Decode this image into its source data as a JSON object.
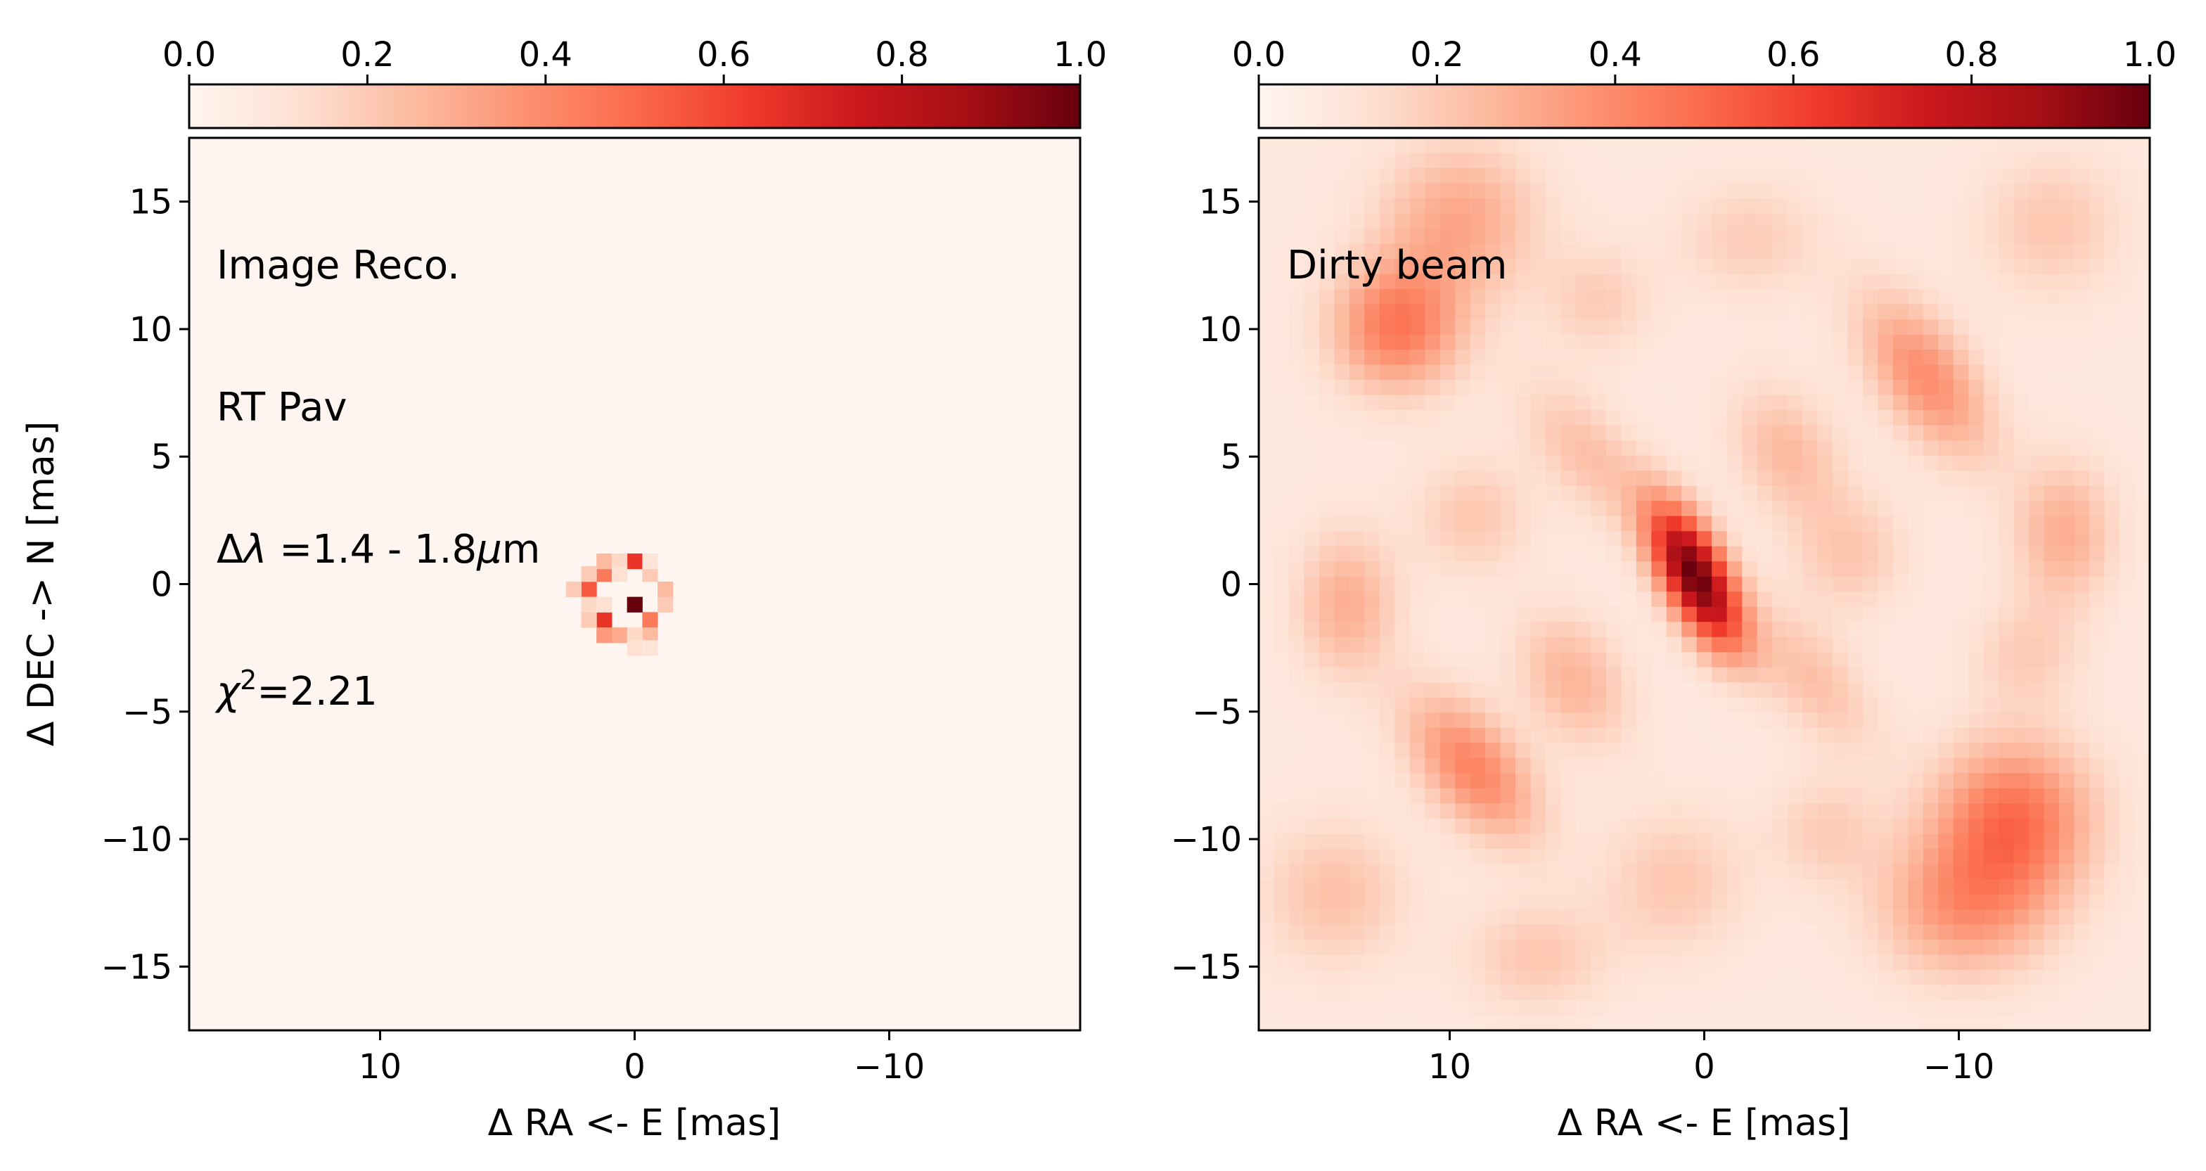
{
  "colormap": {
    "name": "Reds",
    "stops": [
      "#fff5f0",
      "#fee0d2",
      "#fcbba1",
      "#fc9272",
      "#fb6a4a",
      "#ef3b2c",
      "#cb181d",
      "#a50f15",
      "#67000d"
    ]
  },
  "colorbar": {
    "range": [
      0.0,
      1.0
    ],
    "ticks": [
      "0.0",
      "0.2",
      "0.4",
      "0.6",
      "0.8",
      "1.0"
    ]
  },
  "axes": {
    "xlabel": "Δ RA <- E [mas]",
    "ylabel": "Δ DEC -> N [mas]",
    "xlim": [
      17.5,
      -17.5
    ],
    "ylim": [
      -17.5,
      17.5
    ],
    "xticks": [
      {
        "v": 10,
        "t": "10"
      },
      {
        "v": 0,
        "t": "0"
      },
      {
        "v": -10,
        "t": "−10"
      }
    ],
    "yticks": [
      {
        "v": 15,
        "t": "15"
      },
      {
        "v": 10,
        "t": "10"
      },
      {
        "v": 5,
        "t": "5"
      },
      {
        "v": 0,
        "t": "0"
      },
      {
        "v": -5,
        "t": "−5"
      },
      {
        "v": -10,
        "t": "−10"
      },
      {
        "v": -15,
        "t": "−15"
      }
    ]
  },
  "left_panel": {
    "annotations": {
      "line1": "Image Reco.",
      "line2": "RT Pav",
      "line3_prefix": "Δ",
      "line3_symbol": "λ",
      "line3_rest": " =1.4 - 1.8",
      "line3_unit_mu": "μ",
      "line3_unit_m": "m",
      "line4_symbol": "χ",
      "line4_sup": "2",
      "line4_rest": "=2.21"
    }
  },
  "right_panel": {
    "annotations": {
      "line1": "Dirty beam"
    }
  },
  "chart_data": [
    {
      "type": "heatmap",
      "title": "",
      "label": "Image Reco.",
      "xlabel": "Δ RA <- E [mas]",
      "ylabel": "Δ DEC -> N [mas]",
      "xlim": [
        17.5,
        -17.5
      ],
      "ylim": [
        -17.5,
        17.5
      ],
      "clim": [
        0.0,
        1.0
      ],
      "colormap": "Reds",
      "background_value": 0.03,
      "pixel_size_mas": 0.6,
      "pixels": [
        {
          "x": 0.0,
          "y": -0.8,
          "v": 1.0
        },
        {
          "x": 1.2,
          "y": -1.4,
          "v": 0.65
        },
        {
          "x": 1.8,
          "y": -0.2,
          "v": 0.55
        },
        {
          "x": 0.0,
          "y": 0.9,
          "v": 0.65
        },
        {
          "x": 1.2,
          "y": 0.4,
          "v": 0.45
        },
        {
          "x": -0.6,
          "y": -1.4,
          "v": 0.45
        },
        {
          "x": 1.2,
          "y": 0.9,
          "v": 0.25
        },
        {
          "x": 1.8,
          "y": 0.4,
          "v": 0.2
        },
        {
          "x": 0.6,
          "y": 0.9,
          "v": 0.15
        },
        {
          "x": -0.6,
          "y": 0.4,
          "v": 0.2
        },
        {
          "x": -1.2,
          "y": -0.2,
          "v": 0.25
        },
        {
          "x": -1.2,
          "y": -0.8,
          "v": 0.2
        },
        {
          "x": 2.4,
          "y": -0.2,
          "v": 0.2
        },
        {
          "x": 1.8,
          "y": -1.4,
          "v": 0.2
        },
        {
          "x": 0.6,
          "y": -2.0,
          "v": 0.3
        },
        {
          "x": 1.2,
          "y": -2.0,
          "v": 0.35
        },
        {
          "x": -0.6,
          "y": -2.0,
          "v": 0.25
        },
        {
          "x": 0.0,
          "y": -2.0,
          "v": 0.15
        },
        {
          "x": 0.0,
          "y": -2.5,
          "v": 0.12
        },
        {
          "x": -0.6,
          "y": -2.5,
          "v": 0.1
        },
        {
          "x": 1.8,
          "y": -0.8,
          "v": 0.15
        },
        {
          "x": -0.6,
          "y": 0.9,
          "v": 0.1
        },
        {
          "x": 1.2,
          "y": -0.8,
          "v": 0.12
        },
        {
          "x": 0.6,
          "y": 0.4,
          "v": 0.12
        }
      ]
    },
    {
      "type": "heatmap",
      "title": "",
      "label": "Dirty beam",
      "xlabel": "Δ RA <- E [mas]",
      "ylabel": "",
      "xlim": [
        17.5,
        -17.5
      ],
      "ylim": [
        -17.5,
        17.5
      ],
      "clim": [
        0.0,
        1.0
      ],
      "colormap": "Reds",
      "model": "sum of gaussian blobs (x, y, sigma_x, sigma_y, rotation_deg, amplitude) on a 0.6 mas grid",
      "blobs": [
        {
          "x": 0.3,
          "y": 0.4,
          "sx": 0.9,
          "sy": 2.0,
          "rot": 28,
          "a": 0.87
        },
        {
          "x": -0.8,
          "y": -1.8,
          "sx": 0.9,
          "sy": 1.6,
          "rot": 28,
          "a": 0.18
        },
        {
          "x": 12.0,
          "y": 10.0,
          "sx": 1.8,
          "sy": 1.8,
          "rot": 0,
          "a": 0.38
        },
        {
          "x": 9.5,
          "y": 14.2,
          "sx": 2.2,
          "sy": 2.2,
          "rot": 0,
          "a": 0.24
        },
        {
          "x": -9.0,
          "y": 8.0,
          "sx": 1.3,
          "sy": 2.6,
          "rot": 35,
          "a": 0.32
        },
        {
          "x": 9.0,
          "y": -7.5,
          "sx": 1.3,
          "sy": 2.4,
          "rot": 40,
          "a": 0.35
        },
        {
          "x": -12.5,
          "y": -9.5,
          "sx": 2.2,
          "sy": 2.2,
          "rot": 0,
          "a": 0.4
        },
        {
          "x": -10.5,
          "y": -13.0,
          "sx": 2.4,
          "sy": 2.0,
          "rot": 0,
          "a": 0.28
        },
        {
          "x": 14.0,
          "y": -1.0,
          "sx": 1.4,
          "sy": 2.0,
          "rot": 0,
          "a": 0.22
        },
        {
          "x": -14.5,
          "y": 1.8,
          "sx": 1.4,
          "sy": 2.0,
          "rot": 0,
          "a": 0.22
        },
        {
          "x": 4.5,
          "y": 5.0,
          "sx": 1.2,
          "sy": 2.4,
          "rot": 40,
          "a": 0.16
        },
        {
          "x": -4.5,
          "y": -4.0,
          "sx": 1.2,
          "sy": 2.4,
          "rot": 40,
          "a": 0.16
        },
        {
          "x": -3.5,
          "y": 5.0,
          "sx": 1.4,
          "sy": 2.0,
          "rot": 30,
          "a": 0.18
        },
        {
          "x": 5.0,
          "y": -4.0,
          "sx": 1.4,
          "sy": 2.0,
          "rot": 30,
          "a": 0.2
        },
        {
          "x": 9.0,
          "y": 2.5,
          "sx": 1.6,
          "sy": 1.6,
          "rot": 0,
          "a": 0.14
        },
        {
          "x": -6.0,
          "y": 1.0,
          "sx": 1.6,
          "sy": 1.6,
          "rot": 0,
          "a": 0.14
        },
        {
          "x": 1.0,
          "y": -12.0,
          "sx": 2.0,
          "sy": 2.0,
          "rot": 0,
          "a": 0.14
        },
        {
          "x": -2.0,
          "y": 13.5,
          "sx": 2.0,
          "sy": 1.6,
          "rot": 0,
          "a": 0.12
        },
        {
          "x": 14.5,
          "y": -12.5,
          "sx": 2.0,
          "sy": 2.0,
          "rot": 0,
          "a": 0.16
        },
        {
          "x": -14.0,
          "y": 14.0,
          "sx": 2.0,
          "sy": 2.0,
          "rot": 0,
          "a": 0.14
        },
        {
          "x": 6.5,
          "y": -15.0,
          "sx": 2.0,
          "sy": 1.5,
          "rot": 0,
          "a": 0.14
        },
        {
          "x": -5.0,
          "y": -10.0,
          "sx": 1.5,
          "sy": 1.5,
          "rot": 0,
          "a": 0.12
        },
        {
          "x": 4.0,
          "y": 11.0,
          "sx": 1.5,
          "sy": 1.5,
          "rot": 0,
          "a": 0.12
        },
        {
          "x": -13.0,
          "y": -3.0,
          "sx": 1.5,
          "sy": 1.5,
          "rot": 0,
          "a": 0.12
        }
      ]
    }
  ]
}
